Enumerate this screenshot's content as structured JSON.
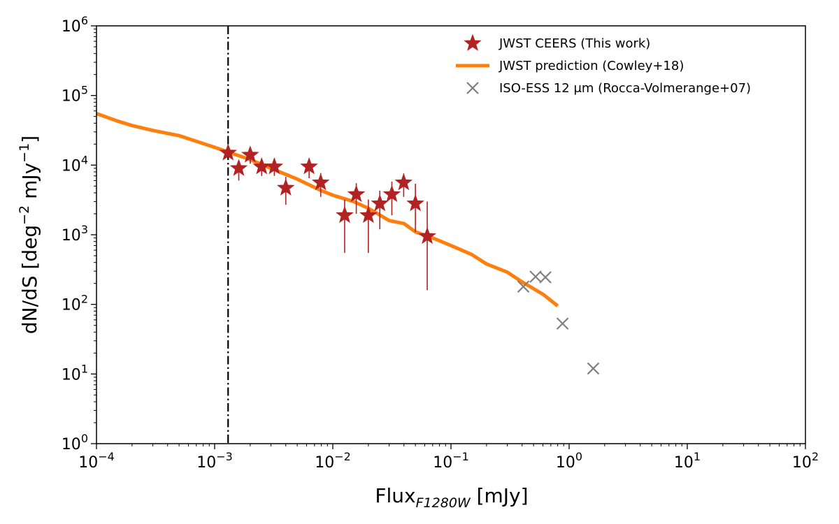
{
  "chart_data": {
    "type": "scatter",
    "xscale": "log",
    "yscale": "log",
    "xlim": [
      0.0001,
      100
    ],
    "ylim": [
      1,
      1000000
    ],
    "xlabel": {
      "main": "Flux",
      "sub": "F1280W",
      "unit": " [mJy]"
    },
    "ylabel": {
      "main": "dN/dS [deg",
      "sup1": "−2",
      "mid": " mJy",
      "sup2": "−1",
      "end": "]"
    },
    "x_ticks": [
      {
        "value": 0.0001,
        "base": "10",
        "exp": "−4"
      },
      {
        "value": 0.001,
        "base": "10",
        "exp": "−3"
      },
      {
        "value": 0.01,
        "base": "10",
        "exp": "−2"
      },
      {
        "value": 0.1,
        "base": "10",
        "exp": "−1"
      },
      {
        "value": 1,
        "base": "10",
        "exp": "0"
      },
      {
        "value": 10,
        "base": "10",
        "exp": "1"
      },
      {
        "value": 100,
        "base": "10",
        "exp": "2"
      }
    ],
    "y_ticks": [
      {
        "value": 1,
        "base": "10",
        "exp": "0"
      },
      {
        "value": 10,
        "base": "10",
        "exp": "1"
      },
      {
        "value": 100,
        "base": "10",
        "exp": "2"
      },
      {
        "value": 1000,
        "base": "10",
        "exp": "3"
      },
      {
        "value": 10000,
        "base": "10",
        "exp": "4"
      },
      {
        "value": 100000,
        "base": "10",
        "exp": "5"
      },
      {
        "value": 1000000,
        "base": "10",
        "exp": "6"
      }
    ],
    "vline": {
      "x": 0.0013,
      "style": "dash-dot",
      "color": "#000000"
    },
    "legend_position": "top-right",
    "series": [
      {
        "name": "JWST CEERS (This work)",
        "kind": "star",
        "color": "#b22222",
        "points": [
          {
            "x": 0.0013,
            "y": 15000,
            "ylo": 15000,
            "yhi": 15000
          },
          {
            "x": 0.0016,
            "y": 9000,
            "ylo": 6000,
            "yhi": 11500
          },
          {
            "x": 0.002,
            "y": 14000,
            "ylo": 10500,
            "yhi": 18000
          },
          {
            "x": 0.0025,
            "y": 9500,
            "ylo": 7000,
            "yhi": 12500
          },
          {
            "x": 0.0032,
            "y": 9500,
            "ylo": 7000,
            "yhi": 12500
          },
          {
            "x": 0.004,
            "y": 4700,
            "ylo": 2700,
            "yhi": 6800
          },
          {
            "x": 0.0063,
            "y": 9500,
            "ylo": 6500,
            "yhi": 12500
          },
          {
            "x": 0.0079,
            "y": 5600,
            "ylo": 3500,
            "yhi": 7700
          },
          {
            "x": 0.0126,
            "y": 1900,
            "ylo": 550,
            "yhi": 3200
          },
          {
            "x": 0.0158,
            "y": 3800,
            "ylo": 2000,
            "yhi": 5500
          },
          {
            "x": 0.02,
            "y": 1900,
            "ylo": 550,
            "yhi": 3200
          },
          {
            "x": 0.025,
            "y": 2800,
            "ylo": 1200,
            "yhi": 4300
          },
          {
            "x": 0.0316,
            "y": 3800,
            "ylo": 1900,
            "yhi": 5800
          },
          {
            "x": 0.0398,
            "y": 5600,
            "ylo": 3500,
            "yhi": 7600
          },
          {
            "x": 0.05,
            "y": 2800,
            "ylo": 1100,
            "yhi": 5400
          },
          {
            "x": 0.063,
            "y": 950,
            "ylo": 160,
            "yhi": 3000
          }
        ]
      },
      {
        "name": "JWST prediction (Cowley+18)",
        "kind": "line",
        "color": "#ff7f0e",
        "points": [
          {
            "x": 0.0001,
            "y": 55000
          },
          {
            "x": 0.00015,
            "y": 43000
          },
          {
            "x": 0.0002,
            "y": 37000
          },
          {
            "x": 0.0003,
            "y": 31500
          },
          {
            "x": 0.0005,
            "y": 26500
          },
          {
            "x": 0.001,
            "y": 18000
          },
          {
            "x": 0.002,
            "y": 12000
          },
          {
            "x": 0.003,
            "y": 9000
          },
          {
            "x": 0.005,
            "y": 6300
          },
          {
            "x": 0.008,
            "y": 4300
          },
          {
            "x": 0.01,
            "y": 3700
          },
          {
            "x": 0.015,
            "y": 3000
          },
          {
            "x": 0.02,
            "y": 2400
          },
          {
            "x": 0.03,
            "y": 1600
          },
          {
            "x": 0.04,
            "y": 1450
          },
          {
            "x": 0.05,
            "y": 1100
          },
          {
            "x": 0.07,
            "y": 900
          },
          {
            "x": 0.1,
            "y": 700
          },
          {
            "x": 0.15,
            "y": 520
          },
          {
            "x": 0.2,
            "y": 380
          },
          {
            "x": 0.3,
            "y": 290
          },
          {
            "x": 0.4,
            "y": 210
          },
          {
            "x": 0.6,
            "y": 140
          },
          {
            "x": 0.8,
            "y": 95
          }
        ]
      },
      {
        "name": "ISO-ESS 12 μm (Rocca-Volmerange+07)",
        "kind": "x",
        "color": "#808080",
        "points": [
          {
            "x": 0.41,
            "y": 180
          },
          {
            "x": 0.52,
            "y": 250
          },
          {
            "x": 0.63,
            "y": 245
          },
          {
            "x": 0.88,
            "y": 53
          },
          {
            "x": 1.6,
            "y": 12
          }
        ]
      }
    ]
  }
}
